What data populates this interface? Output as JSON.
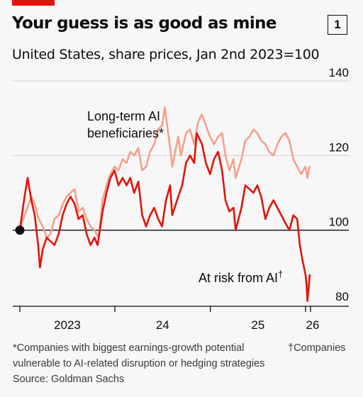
{
  "title": "Your guess is as good as mine",
  "chart_number": "1",
  "subtitle": "United States, share prices, Jan 2nd 2023=100",
  "footnotes": {
    "beneficiaries": "*Companies with biggest earnings-growth potential",
    "at_risk_line1": "†Companies",
    "at_risk_line2": "vulnerable to AI-related disruption or hedging strategies",
    "source": "Source: Goldman Sachs"
  },
  "colors": {
    "accent": "#e3120b",
    "at_risk": "#e3120b",
    "beneficiaries": "#f4a08a",
    "text": "#0c0c0c"
  },
  "chart_data": {
    "type": "line",
    "ylim": [
      80,
      140
    ],
    "yticks": [
      80,
      100,
      120,
      140
    ],
    "y_tick_labels": [
      "80",
      "100",
      "120",
      "140"
    ],
    "xlim": [
      "2023-01-02",
      "2026-01-20"
    ],
    "x_tick_dates": [
      "2023-01-01",
      "2024-01-01",
      "2025-01-01",
      "2026-01-01"
    ],
    "x_tick_labels": [
      "2023",
      "24",
      "25",
      "26"
    ],
    "baseline": 100,
    "gridlines": true,
    "series": [
      {
        "name": "Long-term AI beneficiaries*",
        "color": "#f4a08a",
        "points": [
          [
            "2023-01-02",
            100
          ],
          [
            "2023-01-15",
            103
          ],
          [
            "2023-01-31",
            106
          ],
          [
            "2023-02-15",
            109
          ],
          [
            "2023-02-28",
            107
          ],
          [
            "2023-03-15",
            103
          ],
          [
            "2023-03-31",
            101
          ],
          [
            "2023-04-15",
            98
          ],
          [
            "2023-04-30",
            99
          ],
          [
            "2023-05-15",
            103
          ],
          [
            "2023-05-31",
            104
          ],
          [
            "2023-06-15",
            107
          ],
          [
            "2023-06-30",
            109
          ],
          [
            "2023-07-15",
            110
          ],
          [
            "2023-07-31",
            111
          ],
          [
            "2023-08-15",
            105
          ],
          [
            "2023-08-31",
            106
          ],
          [
            "2023-09-15",
            103
          ],
          [
            "2023-09-30",
            101
          ],
          [
            "2023-10-15",
            100
          ],
          [
            "2023-10-31",
            98
          ],
          [
            "2023-11-15",
            108
          ],
          [
            "2023-11-30",
            112
          ],
          [
            "2023-12-15",
            115
          ],
          [
            "2023-12-31",
            117
          ],
          [
            "2024-01-15",
            116
          ],
          [
            "2024-01-31",
            119
          ],
          [
            "2024-02-15",
            118
          ],
          [
            "2024-02-29",
            121
          ],
          [
            "2024-03-15",
            120
          ],
          [
            "2024-03-31",
            122
          ],
          [
            "2024-04-15",
            116
          ],
          [
            "2024-04-30",
            117
          ],
          [
            "2024-05-15",
            121
          ],
          [
            "2024-05-31",
            123
          ],
          [
            "2024-06-15",
            127
          ],
          [
            "2024-06-30",
            128
          ],
          [
            "2024-07-10",
            133
          ],
          [
            "2024-07-31",
            122
          ],
          [
            "2024-08-08",
            117
          ],
          [
            "2024-08-31",
            125
          ],
          [
            "2024-09-10",
            120
          ],
          [
            "2024-09-30",
            126
          ],
          [
            "2024-10-15",
            127
          ],
          [
            "2024-10-31",
            123
          ],
          [
            "2024-11-15",
            129
          ],
          [
            "2024-11-30",
            131
          ],
          [
            "2024-12-15",
            128
          ],
          [
            "2024-12-31",
            125
          ],
          [
            "2025-01-15",
            123
          ],
          [
            "2025-01-31",
            125
          ],
          [
            "2025-02-15",
            126
          ],
          [
            "2025-02-28",
            120
          ],
          [
            "2025-03-15",
            116
          ],
          [
            "2025-03-31",
            119
          ],
          [
            "2025-04-08",
            114
          ],
          [
            "2025-04-30",
            119
          ],
          [
            "2025-05-15",
            124
          ],
          [
            "2025-05-31",
            125
          ],
          [
            "2025-06-15",
            127
          ],
          [
            "2025-06-30",
            126
          ],
          [
            "2025-07-15",
            124
          ],
          [
            "2025-07-31",
            123
          ],
          [
            "2025-08-15",
            121
          ],
          [
            "2025-08-31",
            120
          ],
          [
            "2025-09-15",
            123
          ],
          [
            "2025-09-30",
            125
          ],
          [
            "2025-10-15",
            126
          ],
          [
            "2025-10-31",
            124
          ],
          [
            "2025-11-15",
            119
          ],
          [
            "2025-11-30",
            117
          ],
          [
            "2025-12-15",
            115
          ],
          [
            "2025-12-31",
            117
          ],
          [
            "2026-01-08",
            114
          ],
          [
            "2026-01-16",
            117
          ]
        ]
      },
      {
        "name": "At risk from AI†",
        "color": "#e3120b",
        "points": [
          [
            "2023-01-02",
            100
          ],
          [
            "2023-01-10",
            104
          ],
          [
            "2023-01-20",
            109
          ],
          [
            "2023-02-01",
            114
          ],
          [
            "2023-02-15",
            108
          ],
          [
            "2023-02-28",
            104
          ],
          [
            "2023-03-13",
            96
          ],
          [
            "2023-03-20",
            90
          ],
          [
            "2023-03-31",
            95
          ],
          [
            "2023-04-15",
            98
          ],
          [
            "2023-04-30",
            97
          ],
          [
            "2023-05-15",
            96
          ],
          [
            "2023-05-31",
            99
          ],
          [
            "2023-06-15",
            104
          ],
          [
            "2023-06-30",
            107
          ],
          [
            "2023-07-15",
            109
          ],
          [
            "2023-07-31",
            107
          ],
          [
            "2023-08-15",
            103
          ],
          [
            "2023-08-31",
            104
          ],
          [
            "2023-09-15",
            99
          ],
          [
            "2023-09-30",
            96
          ],
          [
            "2023-10-15",
            98
          ],
          [
            "2023-10-27",
            96
          ],
          [
            "2023-11-15",
            105
          ],
          [
            "2023-11-30",
            110
          ],
          [
            "2023-12-15",
            114
          ],
          [
            "2023-12-31",
            116
          ],
          [
            "2024-01-15",
            112
          ],
          [
            "2024-01-31",
            114
          ],
          [
            "2024-02-15",
            112
          ],
          [
            "2024-02-29",
            114
          ],
          [
            "2024-03-15",
            110
          ],
          [
            "2024-03-31",
            113
          ],
          [
            "2024-04-15",
            104
          ],
          [
            "2024-04-30",
            101
          ],
          [
            "2024-05-15",
            104
          ],
          [
            "2024-05-31",
            106
          ],
          [
            "2024-06-15",
            103
          ],
          [
            "2024-06-30",
            101
          ],
          [
            "2024-07-15",
            108
          ],
          [
            "2024-07-31",
            112
          ],
          [
            "2024-08-08",
            104
          ],
          [
            "2024-08-31",
            109
          ],
          [
            "2024-09-15",
            112
          ],
          [
            "2024-09-30",
            118
          ],
          [
            "2024-10-15",
            120
          ],
          [
            "2024-10-31",
            118
          ],
          [
            "2024-11-10",
            126
          ],
          [
            "2024-11-30",
            123
          ],
          [
            "2024-12-15",
            118
          ],
          [
            "2024-12-31",
            115
          ],
          [
            "2025-01-15",
            119
          ],
          [
            "2025-01-31",
            121
          ],
          [
            "2025-02-15",
            116
          ],
          [
            "2025-02-28",
            108
          ],
          [
            "2025-03-15",
            105
          ],
          [
            "2025-03-31",
            106
          ],
          [
            "2025-04-08",
            100
          ],
          [
            "2025-04-30",
            106
          ],
          [
            "2025-05-15",
            112
          ],
          [
            "2025-05-31",
            111
          ],
          [
            "2025-06-15",
            110
          ],
          [
            "2025-06-30",
            112
          ],
          [
            "2025-07-15",
            109
          ],
          [
            "2025-07-31",
            103
          ],
          [
            "2025-08-15",
            106
          ],
          [
            "2025-08-31",
            108
          ],
          [
            "2025-09-15",
            106
          ],
          [
            "2025-09-30",
            104
          ],
          [
            "2025-10-15",
            102
          ],
          [
            "2025-10-31",
            100
          ],
          [
            "2025-11-15",
            104
          ],
          [
            "2025-11-30",
            103
          ],
          [
            "2025-12-10",
            96
          ],
          [
            "2025-12-20",
            92
          ],
          [
            "2026-01-01",
            88
          ],
          [
            "2026-01-05",
            85
          ],
          [
            "2026-01-08",
            81
          ],
          [
            "2026-01-12",
            84
          ],
          [
            "2026-01-17",
            88
          ]
        ]
      }
    ],
    "annotations": [
      {
        "text": "Long-term AI",
        "series": "Long-term AI beneficiaries*"
      },
      {
        "text": "beneficiaries*",
        "series": "Long-term AI beneficiaries*"
      },
      {
        "text": "At risk from AI",
        "suffix": "†",
        "series": "At risk from AI†"
      }
    ]
  }
}
